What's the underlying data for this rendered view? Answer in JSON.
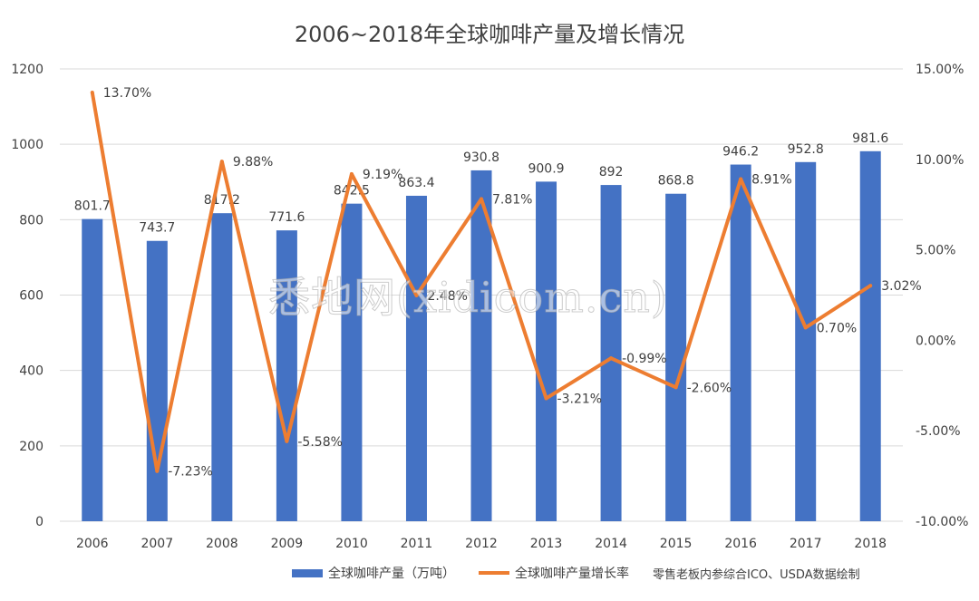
{
  "title": "2006~2018年全球咖啡产量及增长情况",
  "watermark": "悉地网(xidicom.cn)",
  "source_note": "零售老板内参综合ICO、USDA数据绘制",
  "colors": {
    "bar": "#4472C4",
    "line": "#ED7D31",
    "grid": "#D9D9D9",
    "text": "#404040"
  },
  "chart_data": {
    "type": "bar+line",
    "categories": [
      "2006",
      "2007",
      "2008",
      "2009",
      "2010",
      "2011",
      "2012",
      "2013",
      "2014",
      "2015",
      "2016",
      "2017",
      "2018"
    ],
    "series": [
      {
        "name": "全球咖啡产量（万吨）",
        "type": "bar",
        "axis": "left",
        "values": [
          801.7,
          743.7,
          817.2,
          771.6,
          842.5,
          863.4,
          930.8,
          900.9,
          892,
          868.8,
          946.2,
          952.8,
          981.6
        ],
        "labels": [
          "801.7",
          "743.7",
          "817.2",
          "771.6",
          "842.5",
          "863.4",
          "930.8",
          "900.9",
          "892",
          "868.8",
          "946.2",
          "952.8",
          "981.6"
        ]
      },
      {
        "name": "全球咖啡产量增长率",
        "type": "line",
        "axis": "right",
        "values": [
          13.7,
          -7.23,
          9.88,
          -5.58,
          9.19,
          2.48,
          7.81,
          -3.21,
          -0.99,
          -2.6,
          8.91,
          0.7,
          3.02
        ],
        "labels": [
          "13.70%",
          "-7.23%",
          "9.88%",
          "-5.58%",
          "9.19%",
          "2.48%",
          "7.81%",
          "-3.21%",
          "-0.99%",
          "-2.60%",
          "8.91%",
          "0.70%",
          "3.02%"
        ]
      }
    ],
    "y_left": {
      "min": 0,
      "max": 1200,
      "ticks": [
        "0",
        "200",
        "400",
        "600",
        "800",
        "1000",
        "1200"
      ],
      "tick_values": [
        0,
        200,
        400,
        600,
        800,
        1000,
        1200
      ]
    },
    "y_right": {
      "min": -10,
      "max": 15,
      "ticks": [
        "-10.00%",
        "-5.00%",
        "0.00%",
        "5.00%",
        "10.00%",
        "15.00%"
      ],
      "tick_values": [
        -10,
        -5,
        0,
        5,
        10,
        15
      ]
    },
    "grid": true,
    "legend_position": "bottom"
  }
}
